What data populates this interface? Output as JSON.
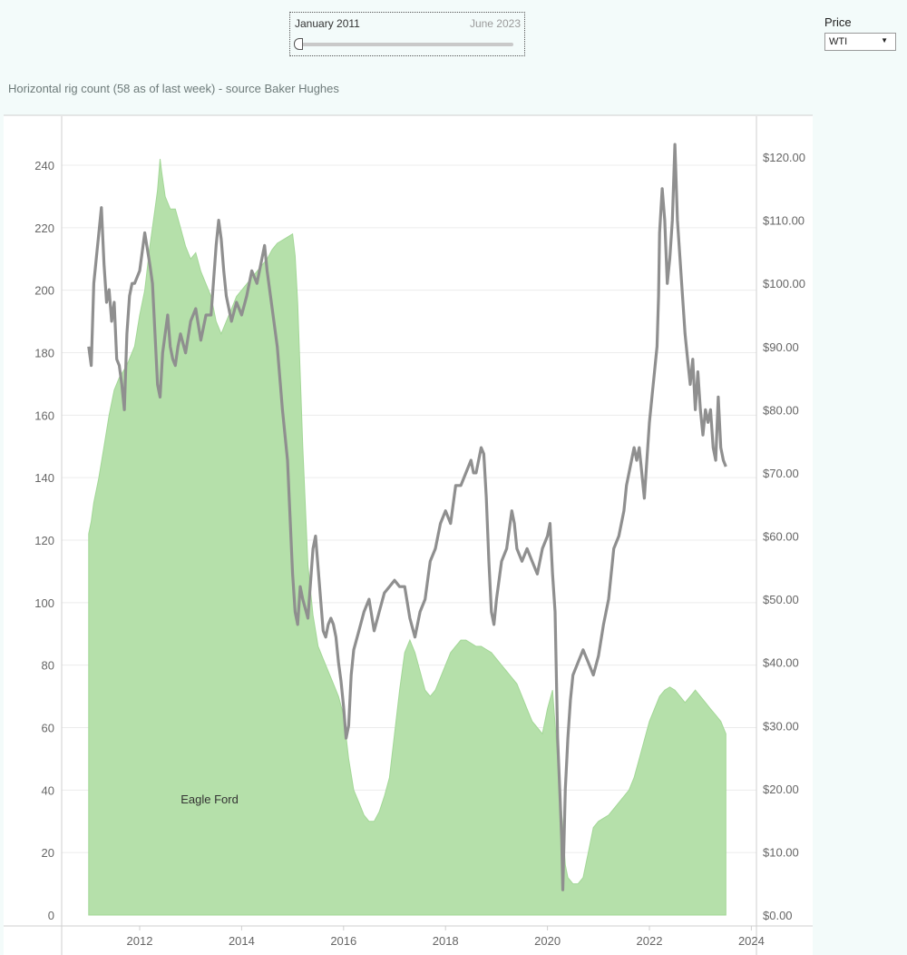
{
  "filter": {
    "start_label": "January 2011",
    "end_label": "June 2023"
  },
  "price_control": {
    "label": "Price",
    "selected": "WTI"
  },
  "chart_title": "Horizontal rig count (58 as of last week) - source Baker Hughes",
  "chart_data": {
    "type": "area",
    "title": "Horizontal rig count (58 as of last week) - source Baker Hughes",
    "xlabel": "",
    "ylabel": "",
    "x_ticks": [
      "2012",
      "2014",
      "2016",
      "2018",
      "2020",
      "2022",
      "2024"
    ],
    "y_ticks_left": [
      "0",
      "20",
      "40",
      "60",
      "80",
      "100",
      "120",
      "140",
      "160",
      "180",
      "200",
      "220",
      "240"
    ],
    "y_ticks_right": [
      "$0.00",
      "$10.00",
      "$20.00",
      "$30.00",
      "$40.00",
      "$50.00",
      "$60.00",
      "$70.00",
      "$80.00",
      "$90.00",
      "$100.00",
      "$110.00",
      "$120.00"
    ],
    "ylim_left": [
      0,
      250
    ],
    "ylim_right": [
      0,
      125
    ],
    "xlim": [
      2010.7,
      2024.0
    ],
    "annotation": "Eagle Ford",
    "grid": "horizontal",
    "colors": {
      "area": "#b5e0aa",
      "area_edge": "#a3d797",
      "line": "#8f8f8f"
    },
    "series": [
      {
        "type": "area",
        "axis": "left",
        "x": [
          2011.0,
          2011.05,
          2011.1,
          2011.2,
          2011.3,
          2011.4,
          2011.5,
          2011.6,
          2011.75,
          2011.9,
          2012.0,
          2012.1,
          2012.2,
          2012.3,
          2012.35,
          2012.4,
          2012.43,
          2012.5,
          2012.6,
          2012.7,
          2012.8,
          2012.9,
          2013.0,
          2013.1,
          2013.2,
          2013.3,
          2013.4,
          2013.5,
          2013.6,
          2013.7,
          2013.8,
          2013.9,
          2014.0,
          2014.1,
          2014.2,
          2014.3,
          2014.4,
          2014.5,
          2014.6,
          2014.7,
          2014.8,
          2014.9,
          2015.0,
          2015.05,
          2015.1,
          2015.2,
          2015.3,
          2015.4,
          2015.5,
          2015.6,
          2015.7,
          2015.8,
          2015.9,
          2016.0,
          2016.1,
          2016.2,
          2016.3,
          2016.4,
          2016.5,
          2016.6,
          2016.7,
          2016.8,
          2016.9,
          2017.0,
          2017.1,
          2017.2,
          2017.3,
          2017.4,
          2017.5,
          2017.6,
          2017.7,
          2017.8,
          2017.9,
          2018.0,
          2018.1,
          2018.2,
          2018.3,
          2018.4,
          2018.5,
          2018.6,
          2018.7,
          2018.8,
          2018.9,
          2019.0,
          2019.1,
          2019.2,
          2019.3,
          2019.4,
          2019.5,
          2019.6,
          2019.7,
          2019.8,
          2019.9,
          2020.0,
          2020.1,
          2020.2,
          2020.3,
          2020.35,
          2020.4,
          2020.5,
          2020.6,
          2020.7,
          2020.8,
          2020.9,
          2021.0,
          2021.1,
          2021.2,
          2021.3,
          2021.4,
          2021.5,
          2021.6,
          2021.7,
          2021.8,
          2021.9,
          2022.0,
          2022.1,
          2022.2,
          2022.3,
          2022.4,
          2022.5,
          2022.6,
          2022.7,
          2022.8,
          2022.9,
          2023.0,
          2023.1,
          2023.2,
          2023.3,
          2023.4,
          2023.5
        ],
        "values": [
          122,
          126,
          132,
          140,
          150,
          160,
          168,
          172,
          176,
          182,
          192,
          200,
          214,
          226,
          232,
          242,
          238,
          230,
          226,
          226,
          220,
          214,
          210,
          212,
          206,
          202,
          198,
          190,
          186,
          190,
          194,
          198,
          200,
          202,
          204,
          206,
          208,
          210,
          213,
          215,
          216,
          217,
          218,
          211,
          196,
          150,
          112,
          96,
          86,
          82,
          78,
          74,
          70,
          64,
          50,
          40,
          36,
          32,
          30,
          30,
          33,
          38,
          44,
          58,
          72,
          84,
          88,
          84,
          78,
          72,
          70,
          72,
          76,
          80,
          84,
          86,
          88,
          88,
          87,
          86,
          86,
          85,
          84,
          82,
          80,
          78,
          76,
          74,
          70,
          66,
          62,
          60,
          58,
          66,
          72,
          50,
          28,
          16,
          12,
          10,
          10,
          12,
          20,
          28,
          30,
          31,
          32,
          34,
          36,
          38,
          40,
          44,
          50,
          56,
          62,
          66,
          70,
          72,
          73,
          72,
          70,
          68,
          70,
          72,
          70,
          68,
          66,
          64,
          62,
          58
        ]
      },
      {
        "type": "line",
        "axis": "right",
        "name": "WTI",
        "x": [
          2011.0,
          2011.05,
          2011.1,
          2011.15,
          2011.2,
          2011.25,
          2011.3,
          2011.35,
          2011.4,
          2011.45,
          2011.5,
          2011.55,
          2011.6,
          2011.65,
          2011.7,
          2011.75,
          2011.8,
          2011.85,
          2011.9,
          2012.0,
          2012.1,
          2012.2,
          2012.25,
          2012.3,
          2012.35,
          2012.4,
          2012.45,
          2012.5,
          2012.55,
          2012.6,
          2012.65,
          2012.7,
          2012.75,
          2012.8,
          2012.9,
          2013.0,
          2013.1,
          2013.2,
          2013.3,
          2013.4,
          2013.5,
          2013.55,
          2013.6,
          2013.65,
          2013.7,
          2013.8,
          2013.9,
          2014.0,
          2014.1,
          2014.2,
          2014.3,
          2014.4,
          2014.45,
          2014.5,
          2014.6,
          2014.7,
          2014.8,
          2014.9,
          2015.0,
          2015.05,
          2015.1,
          2015.15,
          2015.2,
          2015.3,
          2015.4,
          2015.45,
          2015.5,
          2015.55,
          2015.6,
          2015.65,
          2015.7,
          2015.75,
          2015.8,
          2015.85,
          2015.9,
          2015.95,
          2016.0,
          2016.05,
          2016.1,
          2016.15,
          2016.2,
          2016.3,
          2016.4,
          2016.5,
          2016.6,
          2016.7,
          2016.8,
          2016.9,
          2017.0,
          2017.1,
          2017.2,
          2017.3,
          2017.4,
          2017.5,
          2017.6,
          2017.7,
          2017.8,
          2017.9,
          2018.0,
          2018.1,
          2018.2,
          2018.3,
          2018.4,
          2018.5,
          2018.55,
          2018.6,
          2018.7,
          2018.75,
          2018.8,
          2018.85,
          2018.9,
          2018.95,
          2019.0,
          2019.1,
          2019.2,
          2019.3,
          2019.35,
          2019.4,
          2019.5,
          2019.6,
          2019.7,
          2019.8,
          2019.9,
          2020.0,
          2020.05,
          2020.1,
          2020.15,
          2020.2,
          2020.25,
          2020.28,
          2020.3,
          2020.35,
          2020.4,
          2020.45,
          2020.5,
          2020.6,
          2020.7,
          2020.8,
          2020.9,
          2021.0,
          2021.1,
          2021.2,
          2021.3,
          2021.4,
          2021.5,
          2021.55,
          2021.6,
          2021.7,
          2021.75,
          2021.8,
          2021.9,
          2022.0,
          2022.05,
          2022.1,
          2022.15,
          2022.18,
          2022.2,
          2022.25,
          2022.3,
          2022.35,
          2022.4,
          2022.45,
          2022.5,
          2022.55,
          2022.6,
          2022.65,
          2022.7,
          2022.75,
          2022.8,
          2022.85,
          2022.9,
          2022.95,
          2023.0,
          2023.05,
          2023.1,
          2023.15,
          2023.2,
          2023.25,
          2023.3,
          2023.35,
          2023.4,
          2023.45,
          2023.5
        ],
        "values": [
          90,
          87,
          100,
          104,
          108,
          112,
          103,
          97,
          99,
          94,
          97,
          88,
          87,
          84,
          80,
          92,
          98,
          100,
          100,
          102,
          108,
          103,
          100,
          92,
          84,
          82,
          89,
          92,
          95,
          90,
          88,
          87,
          90,
          92,
          89,
          94,
          96,
          91,
          95,
          95,
          106,
          110,
          107,
          102,
          98,
          94,
          97,
          95,
          98,
          102,
          100,
          104,
          106,
          102,
          96,
          90,
          80,
          72,
          54,
          48,
          46,
          52,
          50,
          47,
          58,
          60,
          55,
          50,
          45,
          44,
          46,
          47,
          46,
          44,
          40,
          37,
          33,
          28,
          30,
          38,
          42,
          45,
          48,
          50,
          45,
          48,
          51,
          52,
          53,
          52,
          52,
          47,
          44,
          48,
          50,
          56,
          58,
          62,
          64,
          62,
          68,
          68,
          70,
          72,
          70,
          70,
          74,
          73,
          66,
          56,
          48,
          46,
          50,
          56,
          58,
          64,
          62,
          58,
          56,
          58,
          56,
          54,
          58,
          60,
          62,
          54,
          48,
          28,
          18,
          12,
          4,
          20,
          28,
          34,
          38,
          40,
          42,
          40,
          38,
          41,
          46,
          50,
          58,
          60,
          64,
          68,
          70,
          74,
          72,
          74,
          66,
          78,
          82,
          86,
          90,
          98,
          108,
          115,
          110,
          100,
          104,
          110,
          122,
          110,
          104,
          98,
          92,
          88,
          84,
          88,
          80,
          86,
          80,
          76,
          80,
          78,
          80,
          74,
          72,
          82,
          74,
          72,
          71
        ]
      }
    ]
  }
}
